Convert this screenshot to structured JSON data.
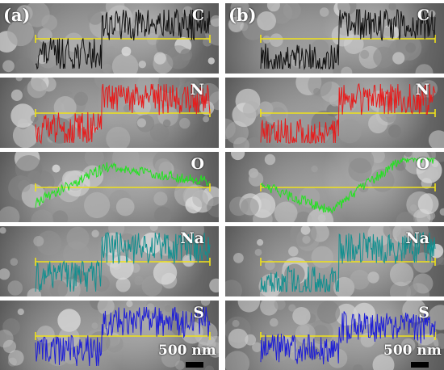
{
  "panels": [
    {
      "label": "(a)",
      "scale_label": "500 nm",
      "rows": [
        {
          "element": "C",
          "color": "#111111"
        },
        {
          "element": "N",
          "color": "#e61c1c"
        },
        {
          "element": "O",
          "color": "#22e31f"
        },
        {
          "element": "Na",
          "color": "#128f8f"
        },
        {
          "element": "S",
          "color": "#1f1fd6"
        }
      ]
    },
    {
      "label": "(b)",
      "scale_label": "500 nm",
      "rows": [
        {
          "element": "C",
          "color": "#111111"
        },
        {
          "element": "N",
          "color": "#e61c1c"
        },
        {
          "element": "O",
          "color": "#22e31f"
        },
        {
          "element": "Na",
          "color": "#128f8f"
        },
        {
          "element": "S",
          "color": "#1f1fd6"
        }
      ]
    }
  ],
  "scan_line_color": "#f0e21a"
}
